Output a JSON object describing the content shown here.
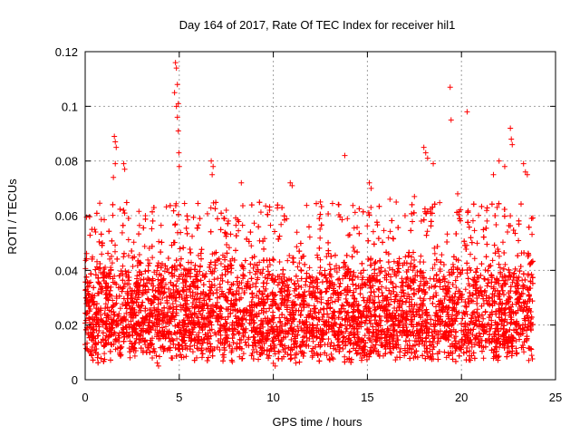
{
  "chart_data": {
    "type": "scatter",
    "title": "Day 164 of 2017, Rate Of TEC Index for receiver hil1",
    "xlabel": "GPS time / hours",
    "ylabel": "ROTI / TECUs",
    "xlim": [
      0,
      25
    ],
    "ylim": [
      0,
      0.12
    ],
    "xticks": [
      0,
      5,
      10,
      15,
      20,
      25
    ],
    "yticks": [
      0,
      0.02,
      0.04,
      0.06,
      0.08,
      0.1,
      0.12
    ],
    "xtick_labels": [
      "0",
      "5",
      "10",
      "15",
      "20",
      "25"
    ],
    "ytick_labels": [
      "0",
      "0.02",
      "0.04",
      "0.06",
      "0.08",
      "0.1",
      "0.12"
    ],
    "grid": true,
    "marker": "+",
    "marker_color": "#ff0000",
    "data_extent_hours": [
      0,
      23.8
    ],
    "series": [
      {
        "points": [
          [
            4.8,
            0.116
          ],
          [
            4.85,
            0.114
          ],
          [
            4.9,
            0.108
          ],
          [
            4.75,
            0.105
          ],
          [
            4.95,
            0.101
          ],
          [
            4.85,
            0.1
          ],
          [
            4.9,
            0.096
          ],
          [
            4.95,
            0.091
          ],
          [
            4.98,
            0.083
          ],
          [
            5.0,
            0.078
          ],
          [
            1.55,
            0.089
          ],
          [
            1.6,
            0.087
          ],
          [
            1.65,
            0.085
          ],
          [
            1.6,
            0.079
          ],
          [
            1.5,
            0.074
          ],
          [
            2.05,
            0.079
          ],
          [
            2.1,
            0.077
          ],
          [
            6.7,
            0.08
          ],
          [
            6.8,
            0.078
          ],
          [
            6.75,
            0.075
          ],
          [
            8.3,
            0.072
          ],
          [
            10.9,
            0.072
          ],
          [
            11.0,
            0.071
          ],
          [
            13.8,
            0.082
          ],
          [
            15.1,
            0.072
          ],
          [
            15.2,
            0.07
          ],
          [
            18.0,
            0.085
          ],
          [
            18.1,
            0.083
          ],
          [
            18.2,
            0.081
          ],
          [
            18.5,
            0.079
          ],
          [
            19.4,
            0.107
          ],
          [
            19.45,
            0.095
          ],
          [
            20.3,
            0.098
          ],
          [
            22.0,
            0.08
          ],
          [
            22.3,
            0.078
          ],
          [
            22.6,
            0.092
          ],
          [
            22.65,
            0.088
          ],
          [
            22.7,
            0.086
          ],
          [
            23.3,
            0.079
          ],
          [
            23.4,
            0.076
          ],
          [
            23.5,
            0.075
          ],
          [
            21.7,
            0.075
          ],
          [
            9.8,
            0.062
          ],
          [
            12.5,
            0.065
          ],
          [
            16.2,
            0.066
          ],
          [
            17.5,
            0.067
          ],
          [
            19.8,
            0.068
          ],
          [
            3.2,
            0.06
          ],
          [
            0.5,
            0.055
          ],
          [
            7.5,
            0.062
          ],
          [
            10.0,
            0.006
          ],
          [
            10.1,
            0.005
          ],
          [
            3.9,
            0.005
          ]
        ]
      }
    ]
  }
}
